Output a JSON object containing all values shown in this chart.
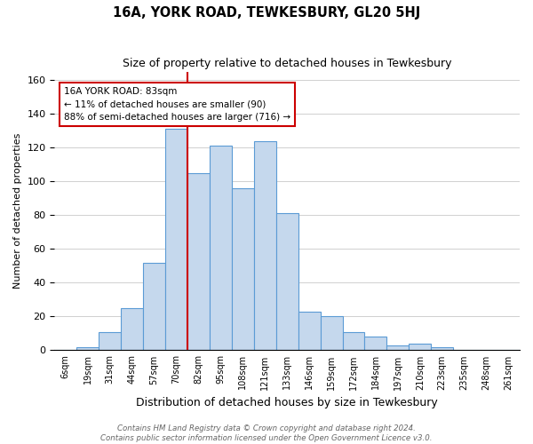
{
  "title": "16A, YORK ROAD, TEWKESBURY, GL20 5HJ",
  "subtitle": "Size of property relative to detached houses in Tewkesbury",
  "xlabel": "Distribution of detached houses by size in Tewkesbury",
  "ylabel": "Number of detached properties",
  "bar_labels": [
    "6sqm",
    "19sqm",
    "31sqm",
    "44sqm",
    "57sqm",
    "70sqm",
    "82sqm",
    "95sqm",
    "108sqm",
    "121sqm",
    "133sqm",
    "146sqm",
    "159sqm",
    "172sqm",
    "184sqm",
    "197sqm",
    "210sqm",
    "223sqm",
    "235sqm",
    "248sqm",
    "261sqm"
  ],
  "bar_values": [
    0,
    2,
    11,
    25,
    52,
    131,
    105,
    121,
    96,
    124,
    81,
    23,
    20,
    11,
    8,
    3,
    4,
    2,
    0,
    0,
    0
  ],
  "bar_color": "#c5d8ed",
  "bar_edge_color": "#5b9bd5",
  "highlight_index": 5,
  "highlight_line_color": "#cc0000",
  "annotation_text": "16A YORK ROAD: 83sqm\n← 11% of detached houses are smaller (90)\n88% of semi-detached houses are larger (716) →",
  "annotation_box_color": "#ffffff",
  "annotation_box_edge": "#cc0000",
  "ylim": [
    0,
    165
  ],
  "yticks": [
    0,
    20,
    40,
    60,
    80,
    100,
    120,
    140,
    160
  ],
  "footer_text": "Contains HM Land Registry data © Crown copyright and database right 2024.\nContains public sector information licensed under the Open Government Licence v3.0.",
  "background_color": "#ffffff",
  "grid_color": "#d0d0d0"
}
